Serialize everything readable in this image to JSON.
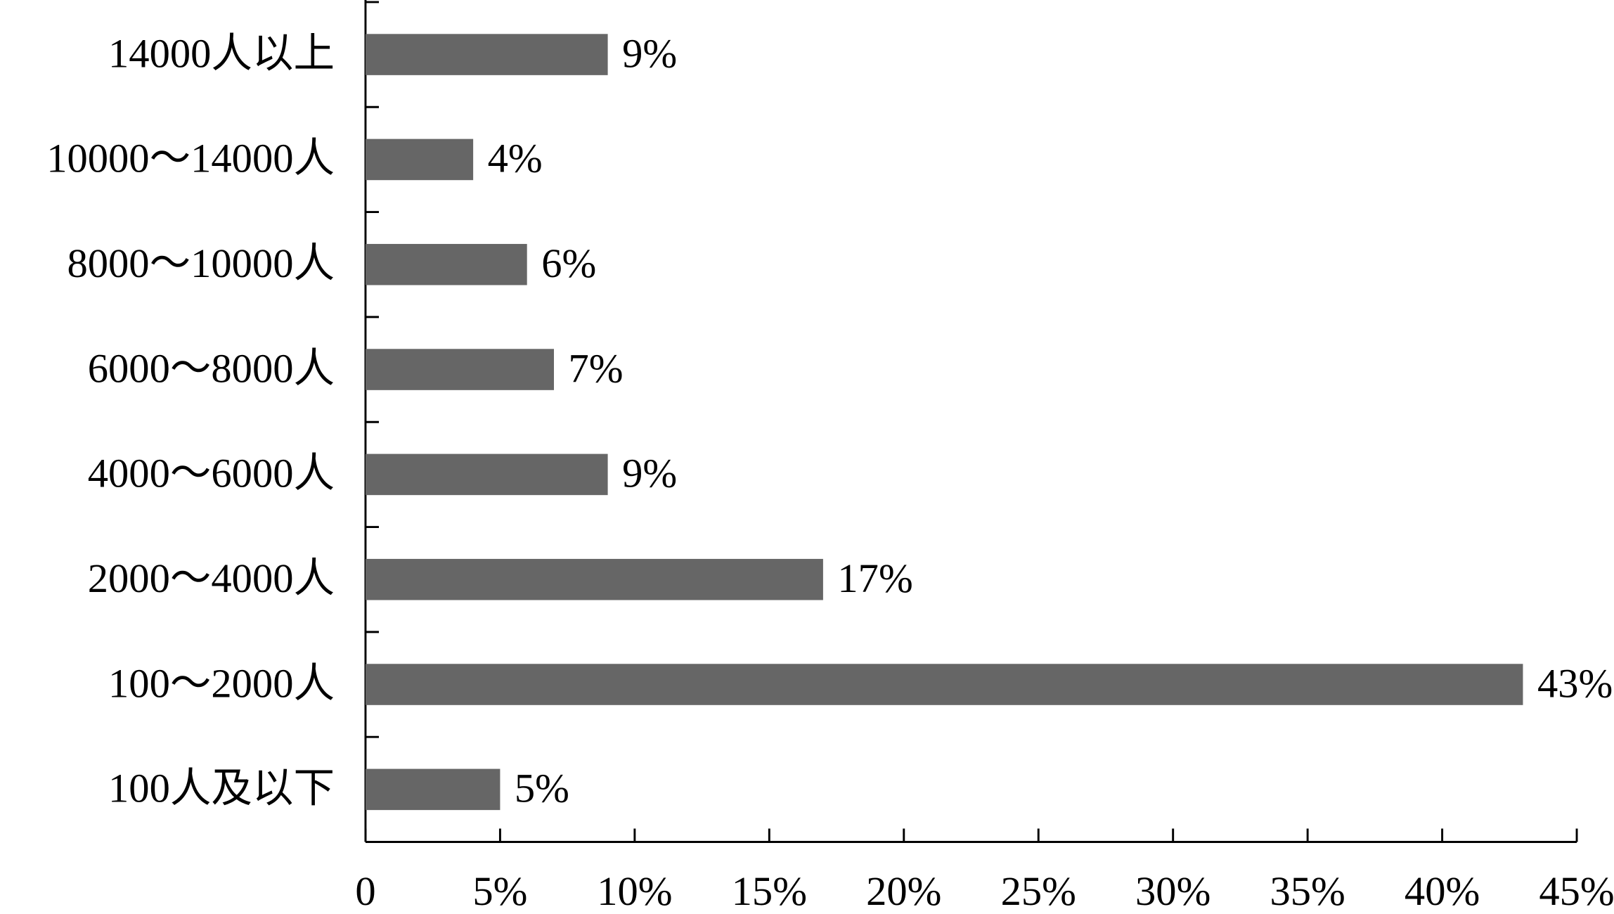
{
  "chart_data": {
    "type": "bar",
    "orientation": "horizontal",
    "categories": [
      "14000人以上",
      "10000～14000人",
      "8000～10000人",
      "6000～8000人",
      "4000～6000人",
      "2000～4000人",
      "100～2000人",
      "100人及以下"
    ],
    "values": [
      9,
      4,
      6,
      7,
      9,
      17,
      43,
      5
    ],
    "value_labels": [
      "9%",
      "4%",
      "6%",
      "7%",
      "9%",
      "17%",
      "43%",
      "5%"
    ],
    "color": "#666666",
    "xlim": [
      0,
      45
    ],
    "xticks": [
      0,
      {
        "value": 5,
        "label": "5%"
      },
      {
        "value": 10,
        "label": "10%"
      },
      {
        "value": 15,
        "label": "15%"
      },
      {
        "value": 20,
        "label": "20%"
      },
      {
        "value": 25,
        "label": "25%"
      },
      {
        "value": 30,
        "label": "30%"
      },
      {
        "value": 35,
        "label": "35%"
      },
      {
        "value": 40,
        "label": "40%"
      },
      {
        "value": 45,
        "label": "45%"
      }
    ],
    "grid": false
  }
}
